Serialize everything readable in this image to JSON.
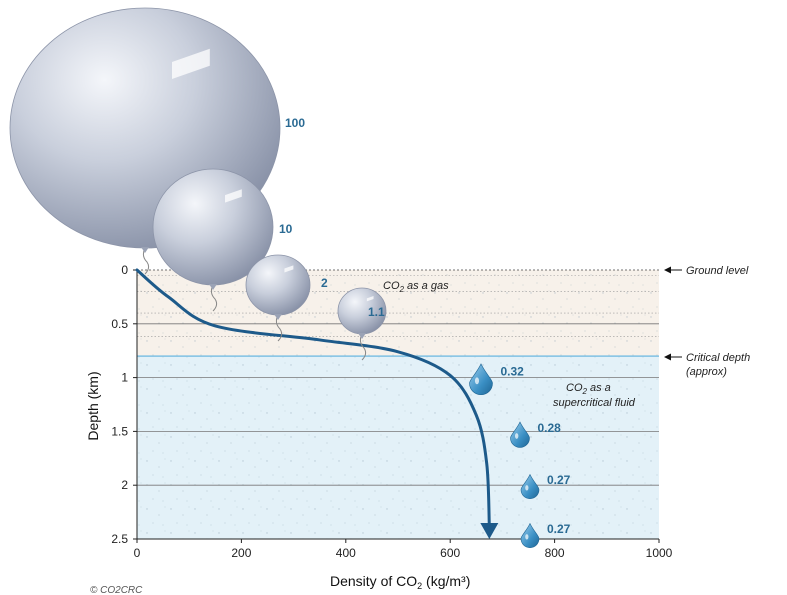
{
  "chart_data": {
    "type": "scatter",
    "xlabel": "Density of CO",
    "xlabel_sub": "2",
    "xlabel_unit": " (kg/m³)",
    "ylabel": "Depth (km)",
    "xlim": [
      0,
      1000
    ],
    "ylim": [
      0,
      2.5
    ],
    "x_ticks": [
      "0",
      "200",
      "400",
      "600",
      "800",
      "1000"
    ],
    "y_ticks": [
      "0",
      "0.5",
      "1",
      "1.5",
      "2",
      "2.5"
    ],
    "critical_depth_km": 0.8,
    "density_curve": [
      {
        "x": 0,
        "y": 0
      },
      {
        "x": 60,
        "y": 0.25
      },
      {
        "x": 150,
        "y": 0.52
      },
      {
        "x": 350,
        "y": 0.65
      },
      {
        "x": 500,
        "y": 0.76
      },
      {
        "x": 600,
        "y": 0.98
      },
      {
        "x": 650,
        "y": 1.35
      },
      {
        "x": 670,
        "y": 1.8
      },
      {
        "x": 675,
        "y": 2.5
      }
    ],
    "gas_volumes": [
      {
        "label": "100",
        "depth": -1.55,
        "x": 50
      },
      {
        "label": "10",
        "depth": -0.5,
        "x": 150
      },
      {
        "label": "2",
        "depth": 0.2,
        "x": 280
      },
      {
        "label": "1.1",
        "depth": 0.45,
        "x": 430
      }
    ],
    "droplets": [
      {
        "label": "0.32",
        "depth": 1.0,
        "x": 660
      },
      {
        "label": "0.28",
        "depth": 1.5,
        "x": 730
      },
      {
        "label": "0.27",
        "depth": 2.0,
        "x": 745
      },
      {
        "label": "0.27",
        "depth": 2.45,
        "x": 745
      }
    ]
  },
  "annotations": {
    "ground_level": "Ground level",
    "critical_depth_line1": "Critical depth",
    "critical_depth_line2": "(approx)",
    "gas_zone_pre": "CO",
    "gas_zone_sub": "2",
    "gas_zone_post": " as a gas",
    "fluid_zone_line1_pre": "CO",
    "fluid_zone_line1_sub": "2",
    "fluid_zone_line1_post": " as a",
    "fluid_zone_line2": "supercritical fluid"
  },
  "copyright": "© CO2CRC",
  "colors": {
    "gas_zone": "#f7f1ea",
    "fluid_zone": "#e3f1f8",
    "curve": "#1d5a8a",
    "value_text": "#2a6a93"
  }
}
